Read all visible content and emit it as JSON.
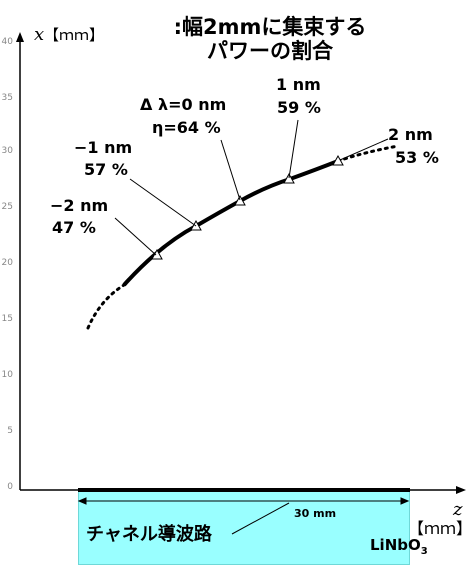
{
  "title_lines": [
    ":幅2mmに集束する",
    "パワーの割合"
  ],
  "x_axis": {
    "symbol": "z",
    "unit": "【ｍｍ】"
  },
  "y_axis": {
    "symbol": "x",
    "unit": "【ｍｍ】",
    "ticks": [
      "0",
      "5",
      "10",
      "15",
      "20",
      "25",
      "30",
      "35",
      "40"
    ]
  },
  "waveguide": {
    "label": "チャネル導波路",
    "material_base": "LiNbO",
    "material_sub": "3",
    "length_label": "30 mm"
  },
  "annotations": [
    {
      "line1": "−2 nm",
      "line2": "47 %"
    },
    {
      "line1": "−1 nm",
      "line2": "57 %"
    },
    {
      "line1": "Δ λ=0 nm",
      "line2": "η=64 %"
    },
    {
      "line1": "1 nm",
      "line2": "59 %"
    },
    {
      "line1": "2 nm",
      "line2": "53 %"
    }
  ],
  "colors": {
    "waveguide_fill": "#99ffff",
    "axis": "#000000",
    "tick_text": "#888888"
  }
}
